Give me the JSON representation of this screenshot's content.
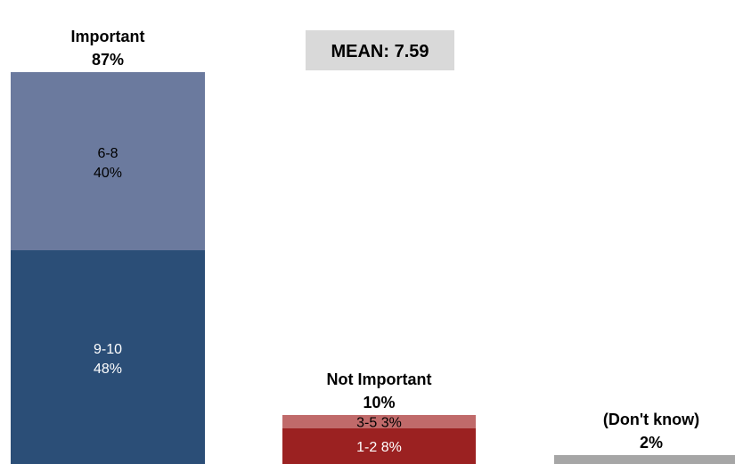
{
  "chart_data": {
    "type": "bar",
    "stacked": true,
    "ylim": [
      0,
      100
    ],
    "mean_label": "MEAN: 7.59",
    "groups": [
      {
        "name_line1": "Important",
        "name_line2": "87%",
        "segments": [
          {
            "range": "9-10",
            "pct_text": "48%",
            "value": 48,
            "color": "#2b4e77",
            "text_color": "#ffffff"
          },
          {
            "range": "6-8",
            "pct_text": "40%",
            "value": 40,
            "color": "#6b7a9e",
            "text_color": "#000000"
          }
        ]
      },
      {
        "name_line1": "Not Important",
        "name_line2": "10%",
        "segments": [
          {
            "range": "1-2",
            "pct_text": "8%",
            "value": 8,
            "color": "#9b2121",
            "text_color": "#ffffff"
          },
          {
            "range": "3-5",
            "pct_text": "3%",
            "value": 3,
            "color": "#c06a6a",
            "text_color": "#000000"
          }
        ]
      },
      {
        "name_line1": "(Don't know)",
        "name_line2": "2%",
        "segments": [
          {
            "range": "",
            "pct_text": "",
            "value": 2,
            "color": "#a6a6a6",
            "text_color": "#000000"
          }
        ]
      }
    ]
  }
}
